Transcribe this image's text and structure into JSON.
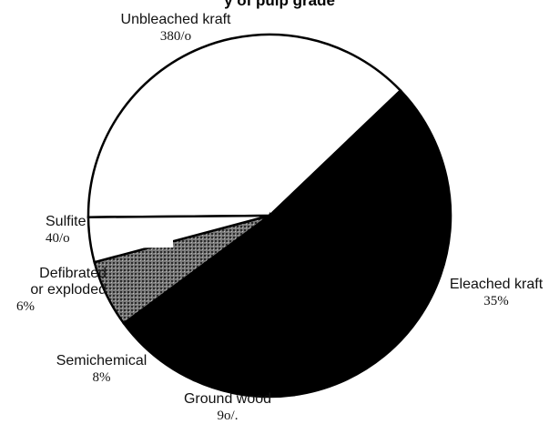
{
  "chart_data": {
    "type": "pie",
    "title": "y of pulp grade",
    "slices": [
      {
        "label": "Unbleached kraft",
        "value_text": "380/o",
        "value": 38,
        "fill": "#ffffff"
      },
      {
        "label": "Eleached kraft",
        "value_text": "35%",
        "value": 35,
        "fill": "#000000"
      },
      {
        "label": "Ground wood",
        "value_text": "9o/.",
        "value": 9,
        "fill": "#000000"
      },
      {
        "label": "Semichemical",
        "value_text": "8%",
        "value": 8,
        "fill": "#000000"
      },
      {
        "label": "Defibrated or exploded",
        "label_lines": [
          "Defibrated",
          "or exploded"
        ],
        "value_text": "6%",
        "value": 6,
        "fill": "#6a6a6a"
      },
      {
        "label": "Sulfite",
        "label_display": "Sulfite:",
        "value_text": "40/o",
        "value": 4,
        "fill": "#ffffff"
      }
    ]
  }
}
